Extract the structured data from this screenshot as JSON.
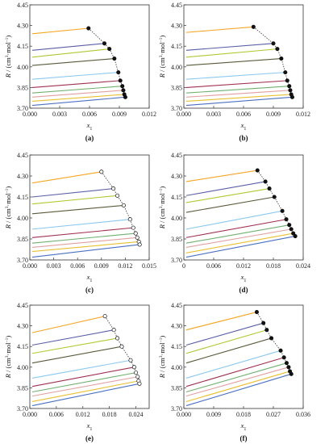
{
  "chart_data": [
    {
      "panel": "(a)",
      "type": "line",
      "xlabel": "x1",
      "ylabel": "R / (cm3·mol−1)",
      "xlim": [
        0,
        0.012
      ],
      "ylim": [
        3.7,
        4.45
      ],
      "xticks": [
        "0.000",
        "0.003",
        "0.006",
        "0.009",
        "0.012"
      ],
      "yticks": [
        "3.70",
        "3.85",
        "4.00",
        "4.15",
        "4.30",
        "4.45"
      ],
      "endpoint_marker": "filled",
      "series": [
        {
          "color": "#f5a623",
          "y0": 4.24,
          "x_end": 0.0059,
          "y_end": 4.28
        },
        {
          "color": "#5b5ea6",
          "y0": 4.12,
          "x_end": 0.0075,
          "y_end": 4.17
        },
        {
          "color": "#b0c830",
          "y0": 4.07,
          "x_end": 0.008,
          "y_end": 4.13
        },
        {
          "color": "#5a5a3a",
          "y0": 4.01,
          "x_end": 0.0085,
          "y_end": 4.06
        },
        {
          "color": "#8ac8f0",
          "y0": 3.91,
          "x_end": 0.0089,
          "y_end": 3.96
        },
        {
          "color": "#a03050",
          "y0": 3.85,
          "x_end": 0.0091,
          "y_end": 3.9
        },
        {
          "color": "#70b070",
          "y0": 3.81,
          "x_end": 0.0093,
          "y_end": 3.86
        },
        {
          "color": "#e0a0a0",
          "y0": 3.78,
          "x_end": 0.0094,
          "y_end": 3.83
        },
        {
          "color": "#e8c030",
          "y0": 3.75,
          "x_end": 0.0095,
          "y_end": 3.8
        },
        {
          "color": "#4a70c0",
          "y0": 3.72,
          "x_end": 0.0096,
          "y_end": 3.78
        }
      ]
    },
    {
      "panel": "(b)",
      "type": "line",
      "xlabel": "x1",
      "ylabel": "R / (cm3·mol−1)",
      "xlim": [
        0,
        0.012
      ],
      "ylim": [
        3.7,
        4.45
      ],
      "xticks": [
        "0.000",
        "0.003",
        "0.006",
        "0.009",
        "0.012"
      ],
      "yticks": [
        "3.70",
        "3.85",
        "4.00",
        "4.15",
        "4.30",
        "4.45"
      ],
      "endpoint_marker": "filled",
      "series": [
        {
          "color": "#f5a623",
          "y0": 4.25,
          "x_end": 0.007,
          "y_end": 4.29
        },
        {
          "color": "#5b5ea6",
          "y0": 4.12,
          "x_end": 0.009,
          "y_end": 4.17
        },
        {
          "color": "#b0c830",
          "y0": 4.07,
          "x_end": 0.0094,
          "y_end": 4.13
        },
        {
          "color": "#5a5a3a",
          "y0": 4.01,
          "x_end": 0.0098,
          "y_end": 4.06
        },
        {
          "color": "#8ac8f0",
          "y0": 3.91,
          "x_end": 0.0102,
          "y_end": 3.96
        },
        {
          "color": "#a03050",
          "y0": 3.85,
          "x_end": 0.0104,
          "y_end": 3.9
        },
        {
          "color": "#70b070",
          "y0": 3.81,
          "x_end": 0.0106,
          "y_end": 3.86
        },
        {
          "color": "#e0a0a0",
          "y0": 3.78,
          "x_end": 0.0107,
          "y_end": 3.83
        },
        {
          "color": "#e8c030",
          "y0": 3.75,
          "x_end": 0.0108,
          "y_end": 3.8
        },
        {
          "color": "#4a70c0",
          "y0": 3.72,
          "x_end": 0.0109,
          "y_end": 3.78
        }
      ]
    },
    {
      "panel": "(c)",
      "type": "line",
      "xlabel": "x1",
      "ylabel": "R / (cm3·mol−1)",
      "xlim": [
        0,
        0.015
      ],
      "ylim": [
        3.7,
        4.45
      ],
      "xticks": [
        "0.000",
        "0.003",
        "0.006",
        "0.009",
        "0.012",
        "0.015"
      ],
      "yticks": [
        "3.70",
        "3.85",
        "4.00",
        "4.15",
        "4.30",
        "4.45"
      ],
      "endpoint_marker": "open",
      "series": [
        {
          "color": "#f5a623",
          "y0": 4.25,
          "x_end": 0.009,
          "y_end": 4.33
        },
        {
          "color": "#5b5ea6",
          "y0": 4.15,
          "x_end": 0.0105,
          "y_end": 4.21
        },
        {
          "color": "#b0c830",
          "y0": 4.1,
          "x_end": 0.011,
          "y_end": 4.16
        },
        {
          "color": "#5a5a3a",
          "y0": 4.03,
          "x_end": 0.0118,
          "y_end": 4.09
        },
        {
          "color": "#8ac8f0",
          "y0": 3.92,
          "x_end": 0.0126,
          "y_end": 3.99
        },
        {
          "color": "#a03050",
          "y0": 3.86,
          "x_end": 0.013,
          "y_end": 3.93
        },
        {
          "color": "#70b070",
          "y0": 3.82,
          "x_end": 0.0133,
          "y_end": 3.89
        },
        {
          "color": "#e0a0a0",
          "y0": 3.79,
          "x_end": 0.0135,
          "y_end": 3.86
        },
        {
          "color": "#e8c030",
          "y0": 3.76,
          "x_end": 0.0137,
          "y_end": 3.83
        },
        {
          "color": "#4a70c0",
          "y0": 3.72,
          "x_end": 0.0138,
          "y_end": 3.81
        }
      ]
    },
    {
      "panel": "(d)",
      "type": "line",
      "xlabel": "x1",
      "ylabel": "R / (cm3·mol−1)",
      "xlim": [
        0,
        0.024
      ],
      "ylim": [
        3.7,
        4.45
      ],
      "xticks": [
        "0",
        "0.006",
        "0.012",
        "0.018",
        "0.024"
      ],
      "yticks": [
        "3.70",
        "3.85",
        "4.00",
        "4.15",
        "4.30",
        "4.45"
      ],
      "endpoint_marker": "filled",
      "series": [
        {
          "color": "#f5a623",
          "y0": 4.26,
          "x_end": 0.0148,
          "y_end": 4.34
        },
        {
          "color": "#5b5ea6",
          "y0": 4.16,
          "x_end": 0.0164,
          "y_end": 4.26
        },
        {
          "color": "#b0c830",
          "y0": 4.11,
          "x_end": 0.0172,
          "y_end": 4.21
        },
        {
          "color": "#5a5a3a",
          "y0": 4.04,
          "x_end": 0.0182,
          "y_end": 4.15
        },
        {
          "color": "#8ac8f0",
          "y0": 3.92,
          "x_end": 0.0198,
          "y_end": 4.05
        },
        {
          "color": "#a03050",
          "y0": 3.86,
          "x_end": 0.0206,
          "y_end": 3.99
        },
        {
          "color": "#70b070",
          "y0": 3.82,
          "x_end": 0.0212,
          "y_end": 3.95
        },
        {
          "color": "#e0a0a0",
          "y0": 3.79,
          "x_end": 0.0216,
          "y_end": 3.92
        },
        {
          "color": "#e8c030",
          "y0": 3.75,
          "x_end": 0.022,
          "y_end": 3.89
        },
        {
          "color": "#4a70c0",
          "y0": 3.72,
          "x_end": 0.0224,
          "y_end": 3.87
        }
      ]
    },
    {
      "panel": "(e)",
      "type": "line",
      "xlabel": "x1",
      "ylabel": "",
      "xlim": [
        0,
        0.027
      ],
      "ylim": [
        3.7,
        4.45
      ],
      "xticks": [
        "0.000",
        "0.006",
        "0.012",
        "0.018",
        "0.024"
      ],
      "yticks": [
        "3.70",
        "3.85",
        "4.00",
        "4.15",
        "4.30",
        "4.45"
      ],
      "endpoint_marker": "open",
      "series": [
        {
          "color": "#f5a623",
          "y0": 4.25,
          "x_end": 0.017,
          "y_end": 4.37
        },
        {
          "color": "#5b5ea6",
          "y0": 4.16,
          "x_end": 0.019,
          "y_end": 4.27
        },
        {
          "color": "#b0c830",
          "y0": 4.1,
          "x_end": 0.0198,
          "y_end": 4.21
        },
        {
          "color": "#5a5a3a",
          "y0": 4.03,
          "x_end": 0.0208,
          "y_end": 4.15
        },
        {
          "color": "#8ac8f0",
          "y0": 3.92,
          "x_end": 0.0228,
          "y_end": 4.05
        },
        {
          "color": "#a03050",
          "y0": 3.86,
          "x_end": 0.0236,
          "y_end": 4.0
        },
        {
          "color": "#70b070",
          "y0": 3.82,
          "x_end": 0.024,
          "y_end": 3.96
        },
        {
          "color": "#e0a0a0",
          "y0": 3.79,
          "x_end": 0.0244,
          "y_end": 3.93
        },
        {
          "color": "#e8c030",
          "y0": 3.75,
          "x_end": 0.0246,
          "y_end": 3.9
        },
        {
          "color": "#4a70c0",
          "y0": 3.72,
          "x_end": 0.0248,
          "y_end": 3.88
        }
      ]
    },
    {
      "panel": "(f)",
      "type": "line",
      "xlabel": "x1",
      "ylabel": "",
      "xlim": [
        0,
        0.036
      ],
      "ylim": [
        3.7,
        4.45
      ],
      "xticks": [
        "0.000",
        "0.009",
        "0.018",
        "0.027",
        "0.036"
      ],
      "yticks": [
        "3.70",
        "3.85",
        "4.00",
        "4.15",
        "4.30",
        "4.45"
      ],
      "endpoint_marker": "filled",
      "series": [
        {
          "color": "#f5a623",
          "y0": 4.27,
          "x_end": 0.022,
          "y_end": 4.4
        },
        {
          "color": "#5b5ea6",
          "y0": 4.16,
          "x_end": 0.024,
          "y_end": 4.32
        },
        {
          "color": "#b0c830",
          "y0": 4.1,
          "x_end": 0.025,
          "y_end": 4.27
        },
        {
          "color": "#5a5a3a",
          "y0": 4.03,
          "x_end": 0.0264,
          "y_end": 4.21
        },
        {
          "color": "#8ac8f0",
          "y0": 3.92,
          "x_end": 0.0292,
          "y_end": 4.12
        },
        {
          "color": "#a03050",
          "y0": 3.86,
          "x_end": 0.0302,
          "y_end": 4.07
        },
        {
          "color": "#70b070",
          "y0": 3.82,
          "x_end": 0.031,
          "y_end": 4.03
        },
        {
          "color": "#e0a0a0",
          "y0": 3.79,
          "x_end": 0.0316,
          "y_end": 4.0
        },
        {
          "color": "#e8c030",
          "y0": 3.75,
          "x_end": 0.032,
          "y_end": 3.97
        },
        {
          "color": "#4a70c0",
          "y0": 3.72,
          "x_end": 0.0324,
          "y_end": 3.95
        }
      ]
    }
  ]
}
